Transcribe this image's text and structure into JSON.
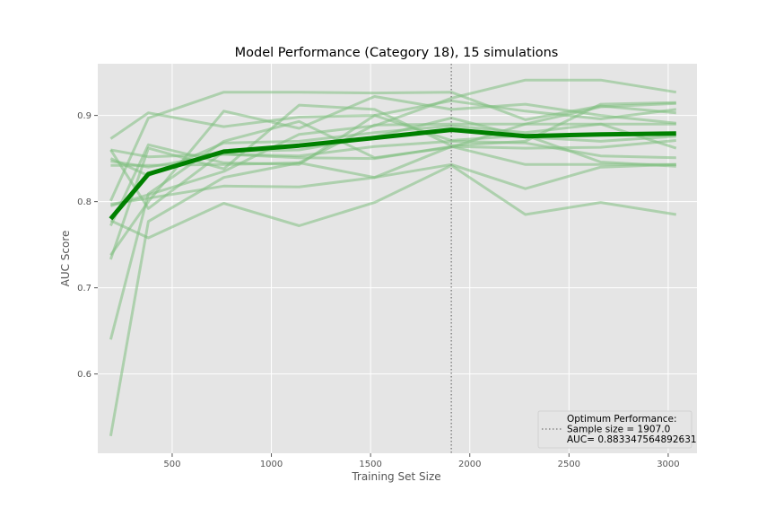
{
  "chart_data": {
    "type": "line",
    "title": "Model Performance (Category 18), 15 simulations",
    "xlabel": "Training Set Size",
    "ylabel": "AUC Score",
    "xlim": [
      125,
      3145
    ],
    "ylim": [
      0.508,
      0.96
    ],
    "xticks": [
      500,
      1000,
      1500,
      2000,
      2500,
      3000
    ],
    "yticks": [
      0.6,
      0.7,
      0.8,
      0.9
    ],
    "grid": true,
    "x": [
      190,
      380,
      760,
      1140,
      1520,
      1907,
      2280,
      2660,
      3040
    ],
    "simulations": [
      [
        0.873,
        0.903,
        0.887,
        0.898,
        0.9,
        0.917,
        0.905,
        0.896,
        0.907
      ],
      [
        0.86,
        0.852,
        0.855,
        0.853,
        0.864,
        0.87,
        0.868,
        0.853,
        0.851
      ],
      [
        0.847,
        0.84,
        0.855,
        0.851,
        0.85,
        0.864,
        0.862,
        0.863,
        0.871
      ],
      [
        0.842,
        0.842,
        0.843,
        0.845,
        0.889,
        0.89,
        0.89,
        0.89,
        0.89
      ],
      [
        0.801,
        0.897,
        0.927,
        0.927,
        0.926,
        0.927,
        0.895,
        0.911,
        0.903
      ],
      [
        0.797,
        0.804,
        0.818,
        0.817,
        0.828,
        0.843,
        0.815,
        0.84,
        0.843
      ],
      [
        0.795,
        0.808,
        0.835,
        0.878,
        0.888,
        0.92,
        0.941,
        0.941,
        0.927
      ],
      [
        0.778,
        0.758,
        0.798,
        0.772,
        0.799,
        0.842,
        0.785,
        0.799,
        0.785
      ],
      [
        0.772,
        0.866,
        0.845,
        0.843,
        0.9,
        0.871,
        0.877,
        0.846,
        0.841
      ],
      [
        0.738,
        0.8,
        0.905,
        0.885,
        0.922,
        0.907,
        0.913,
        0.9,
        0.891
      ],
      [
        0.733,
        0.862,
        0.838,
        0.912,
        0.907,
        0.865,
        0.87,
        0.913,
        0.915
      ],
      [
        0.64,
        0.809,
        0.87,
        0.893,
        0.851,
        0.863,
        0.89,
        0.91,
        0.914
      ],
      [
        0.528,
        0.777,
        0.828,
        0.845,
        0.828,
        0.864,
        0.843,
        0.843,
        0.843
      ],
      [
        0.86,
        0.792,
        0.858,
        0.86,
        0.875,
        0.897,
        0.875,
        0.87,
        0.876
      ],
      [
        0.85,
        0.83,
        0.868,
        0.87,
        0.88,
        0.888,
        0.88,
        0.89,
        0.862
      ]
    ],
    "mean_line": {
      "x": [
        190,
        380,
        760,
        1140,
        1520,
        1907,
        2280,
        2660,
        3040
      ],
      "values": [
        0.78,
        0.832,
        0.858,
        0.865,
        0.874,
        0.8833,
        0.876,
        0.878,
        0.879
      ],
      "color": "#008000"
    },
    "optimum": {
      "x": 1907.0,
      "auc": 0.883347564892631,
      "legend_lines": [
        "Optimum Performance:",
        "Sample size = 1907.0",
        "AUC= 0.883347564892631"
      ]
    },
    "legend_position": "lower-right",
    "colors": {
      "background": "#e5e5e5",
      "grid": "#ffffff",
      "simulation_line": "#80c080",
      "mean_line": "#008000",
      "optimum_line": "#888888"
    }
  }
}
